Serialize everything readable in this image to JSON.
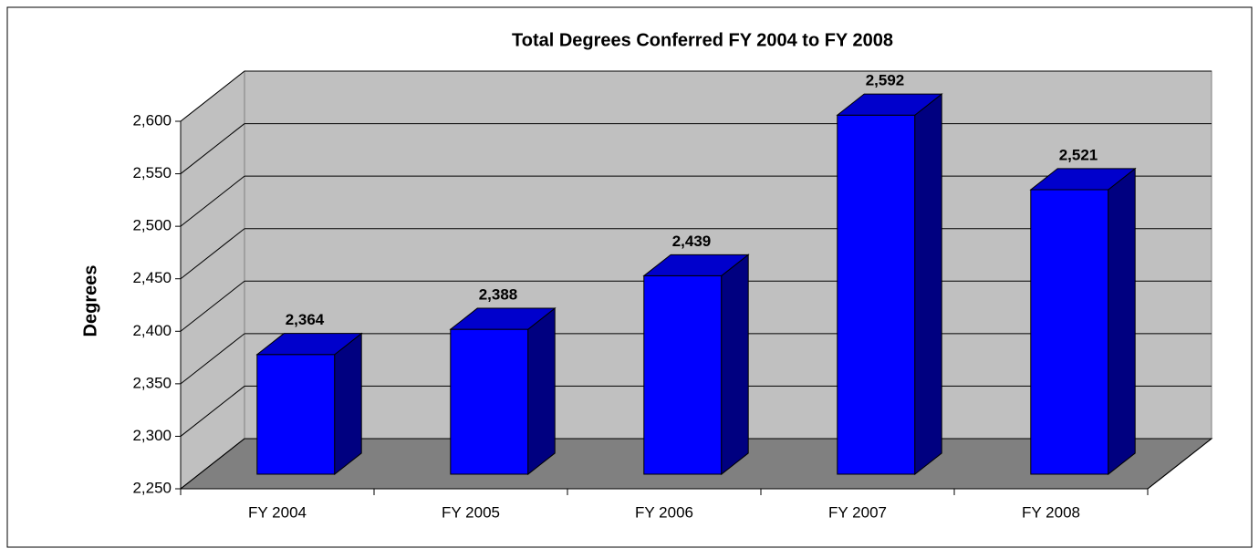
{
  "chart_data": {
    "type": "bar3d",
    "title": "Total Degrees Conferred FY 2004 to FY 2008",
    "y_label": "Degrees",
    "categories": [
      "FY 2004",
      "FY 2005",
      "FY 2006",
      "FY 2007",
      "FY 2008"
    ],
    "values": [
      2364,
      2388,
      2439,
      2592,
      2521
    ],
    "value_labels": [
      "2,364",
      "2,388",
      "2,439",
      "2,592",
      "2,521"
    ],
    "color": "#0000ff",
    "ylim": [
      2250,
      2600
    ],
    "yticks": [
      {
        "value": 2250,
        "label": "2,250"
      },
      {
        "value": 2300,
        "label": "2,300"
      },
      {
        "value": 2350,
        "label": "2,350"
      },
      {
        "value": 2400,
        "label": "2,400"
      },
      {
        "value": 2450,
        "label": "2,450"
      },
      {
        "value": 2500,
        "label": "2,500"
      },
      {
        "value": 2550,
        "label": "2,550"
      },
      {
        "value": 2600,
        "label": "2,600"
      }
    ],
    "grid": true
  }
}
